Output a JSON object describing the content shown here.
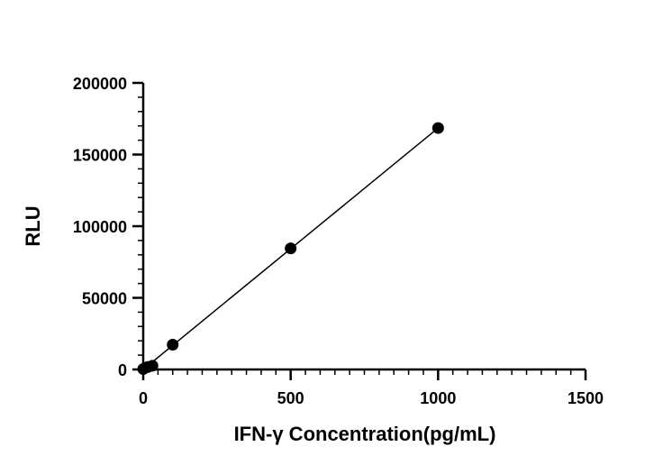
{
  "chart_data": {
    "type": "scatter",
    "title": "",
    "xlabel": "IFN-γ Concentration(pg/mL)",
    "ylabel": "RLU",
    "xlim": [
      0,
      1500
    ],
    "ylim": [
      0,
      200000
    ],
    "x_major_ticks": [
      0,
      500,
      1000,
      1500
    ],
    "x_tick_labels": [
      "0",
      "500",
      "1000",
      "1500"
    ],
    "x_minor_tick_step": 50,
    "y_major_ticks": [
      0,
      50000,
      100000,
      150000,
      200000
    ],
    "y_tick_labels": [
      "0",
      "50000",
      "100000",
      "150000",
      "200000"
    ],
    "y_minor_tick_step": 10000,
    "grid": false,
    "series": [
      {
        "x": [
          0,
          15.6,
          31.25,
          100,
          500,
          1000
        ],
        "y": [
          300,
          1700,
          2600,
          17300,
          84500,
          168500
        ],
        "marker": "circle",
        "color": "#000000",
        "fit_line": {
          "type": "linear",
          "x": [
            0,
            1000
          ],
          "y": [
            0,
            168500
          ]
        }
      }
    ]
  }
}
